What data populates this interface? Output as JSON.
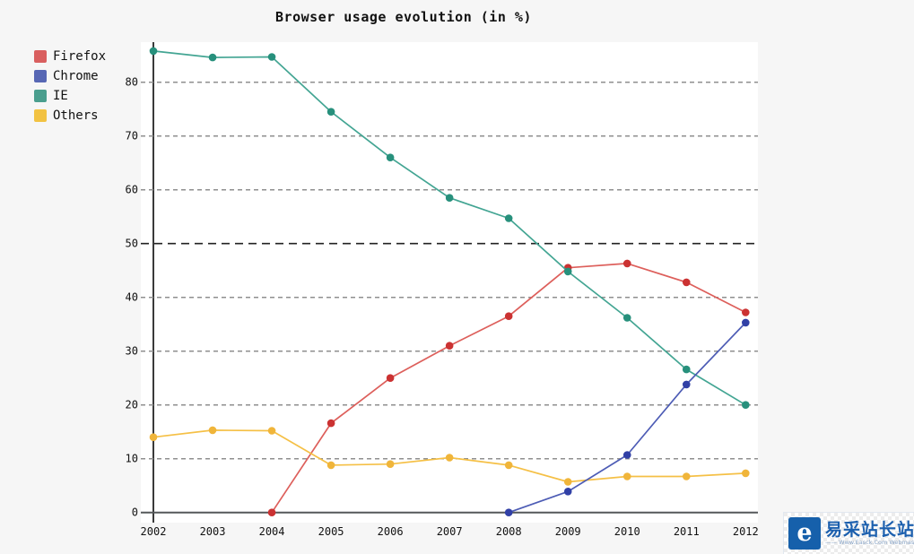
{
  "chart_data": {
    "type": "line",
    "title": "Browser usage evolution (in %)",
    "x": [
      2002,
      2003,
      2004,
      2005,
      2006,
      2007,
      2008,
      2009,
      2010,
      2011,
      2012
    ],
    "series": [
      {
        "name": "Firefox",
        "legend_color": "#d95f5f",
        "line_color": "#dd5f5b",
        "point_color": "#cb3232",
        "values": [
          null,
          null,
          0,
          16.6,
          25,
          31,
          36.5,
          45.5,
          46.3,
          42.8,
          37.2
        ]
      },
      {
        "name": "Chrome",
        "legend_color": "#5767b4",
        "line_color": "#4d5cb5",
        "point_color": "#3140a6",
        "values": [
          null,
          null,
          null,
          null,
          null,
          null,
          0,
          3.9,
          10.7,
          23.8,
          35.3
        ]
      },
      {
        "name": "IE",
        "legend_color": "#4a9e8e",
        "line_color": "#43a593",
        "point_color": "#27907c",
        "values": [
          85.8,
          84.6,
          84.7,
          74.5,
          66,
          58.5,
          54.7,
          44.8,
          36.2,
          26.6,
          20
        ]
      },
      {
        "name": "Others",
        "legend_color": "#f2c242",
        "line_color": "#f5c046",
        "point_color": "#f0b53a",
        "values": [
          14,
          15.3,
          15.2,
          8.8,
          9,
          10.2,
          8.8,
          5.7,
          6.7,
          6.7,
          7.3
        ]
      }
    ],
    "ylim": [
      0,
      89
    ],
    "yticks": [
      0,
      10,
      20,
      30,
      40,
      50,
      60,
      70,
      80
    ],
    "highlight_gridline": 50,
    "grid": "dashed-horizontal",
    "legend_position": "top-left"
  },
  "badge": {
    "logo_letter": "e",
    "site_name": "易采站长站",
    "tagline": "—— Www.Easck.Com Webmaster"
  }
}
